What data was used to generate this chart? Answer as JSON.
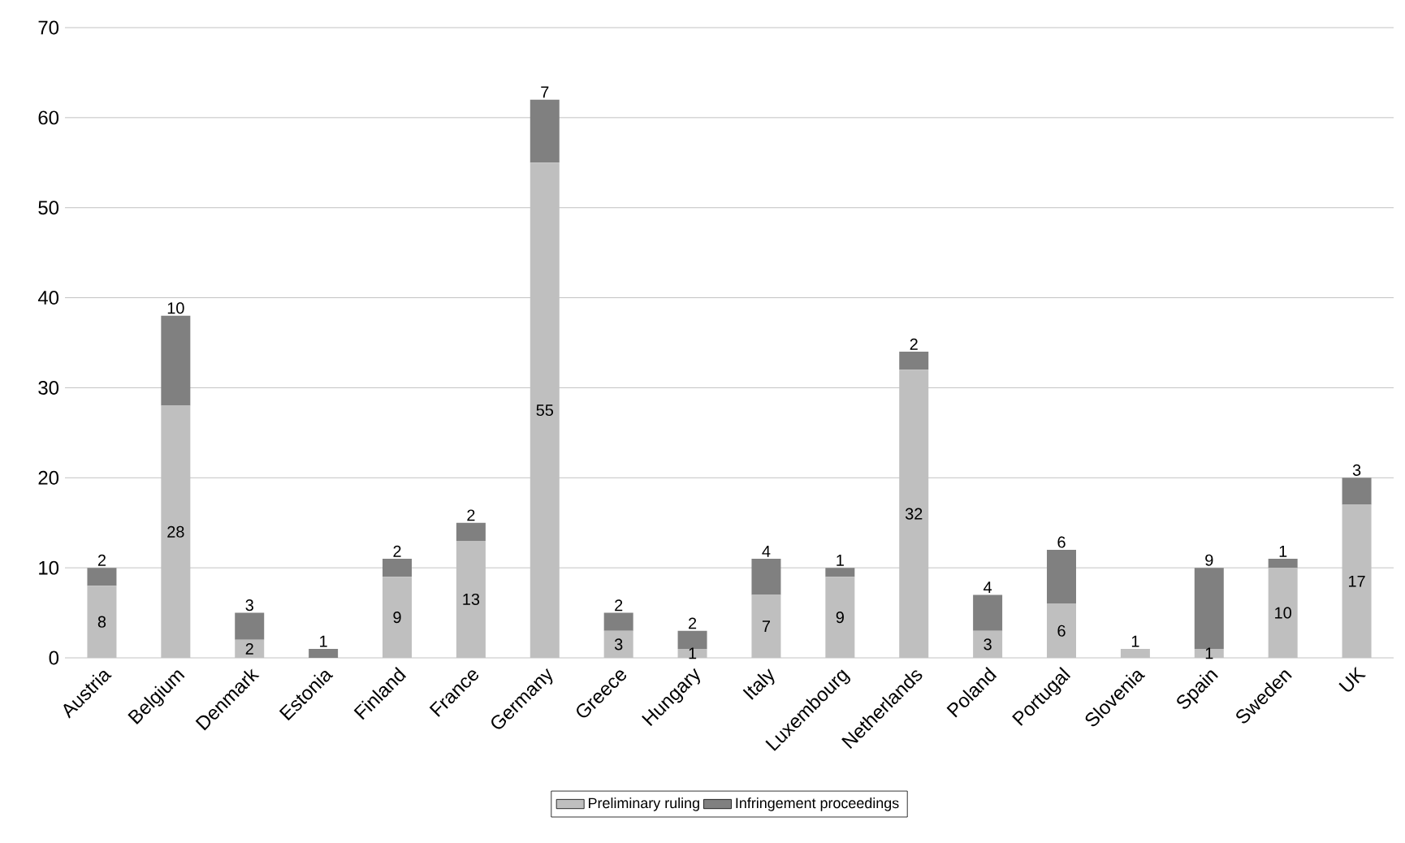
{
  "chart_data": {
    "type": "bar",
    "stacked": true,
    "categories": [
      "Austria",
      "Belgium",
      "Denmark",
      "Estonia",
      "Finland",
      "France",
      "Germany",
      "Greece",
      "Hungary",
      "Italy",
      "Luxembourg",
      "Netherlands",
      "Poland",
      "Portugal",
      "Slovenia",
      "Spain",
      "Sweden",
      "UK"
    ],
    "series": [
      {
        "name": "Preliminary ruling",
        "color": "#bfbfbf",
        "values": [
          8,
          28,
          2,
          0,
          9,
          13,
          55,
          3,
          1,
          7,
          9,
          32,
          3,
          6,
          1,
          1,
          10,
          17
        ],
        "value_labels": [
          "8",
          "28",
          "2",
          null,
          "9",
          "13",
          "55",
          "3",
          "1",
          "7",
          "9",
          "32",
          "3",
          "6",
          "1",
          "1",
          "10",
          "17"
        ]
      },
      {
        "name": "Infringement proceedings",
        "color": "#808080",
        "values": [
          2,
          10,
          3,
          1,
          2,
          2,
          7,
          2,
          2,
          4,
          1,
          2,
          4,
          6,
          0,
          9,
          1,
          3
        ],
        "value_labels": [
          "2",
          "10",
          "3",
          "1",
          "2",
          "2",
          "7",
          "2",
          "2",
          "4",
          "1",
          "2",
          "4",
          "6",
          null,
          "9",
          "1",
          "3"
        ]
      }
    ],
    "ylim": [
      0,
      70
    ],
    "yticks": [
      0,
      10,
      20,
      30,
      40,
      50,
      60,
      70
    ],
    "grid": "y",
    "legend": "bottom"
  }
}
